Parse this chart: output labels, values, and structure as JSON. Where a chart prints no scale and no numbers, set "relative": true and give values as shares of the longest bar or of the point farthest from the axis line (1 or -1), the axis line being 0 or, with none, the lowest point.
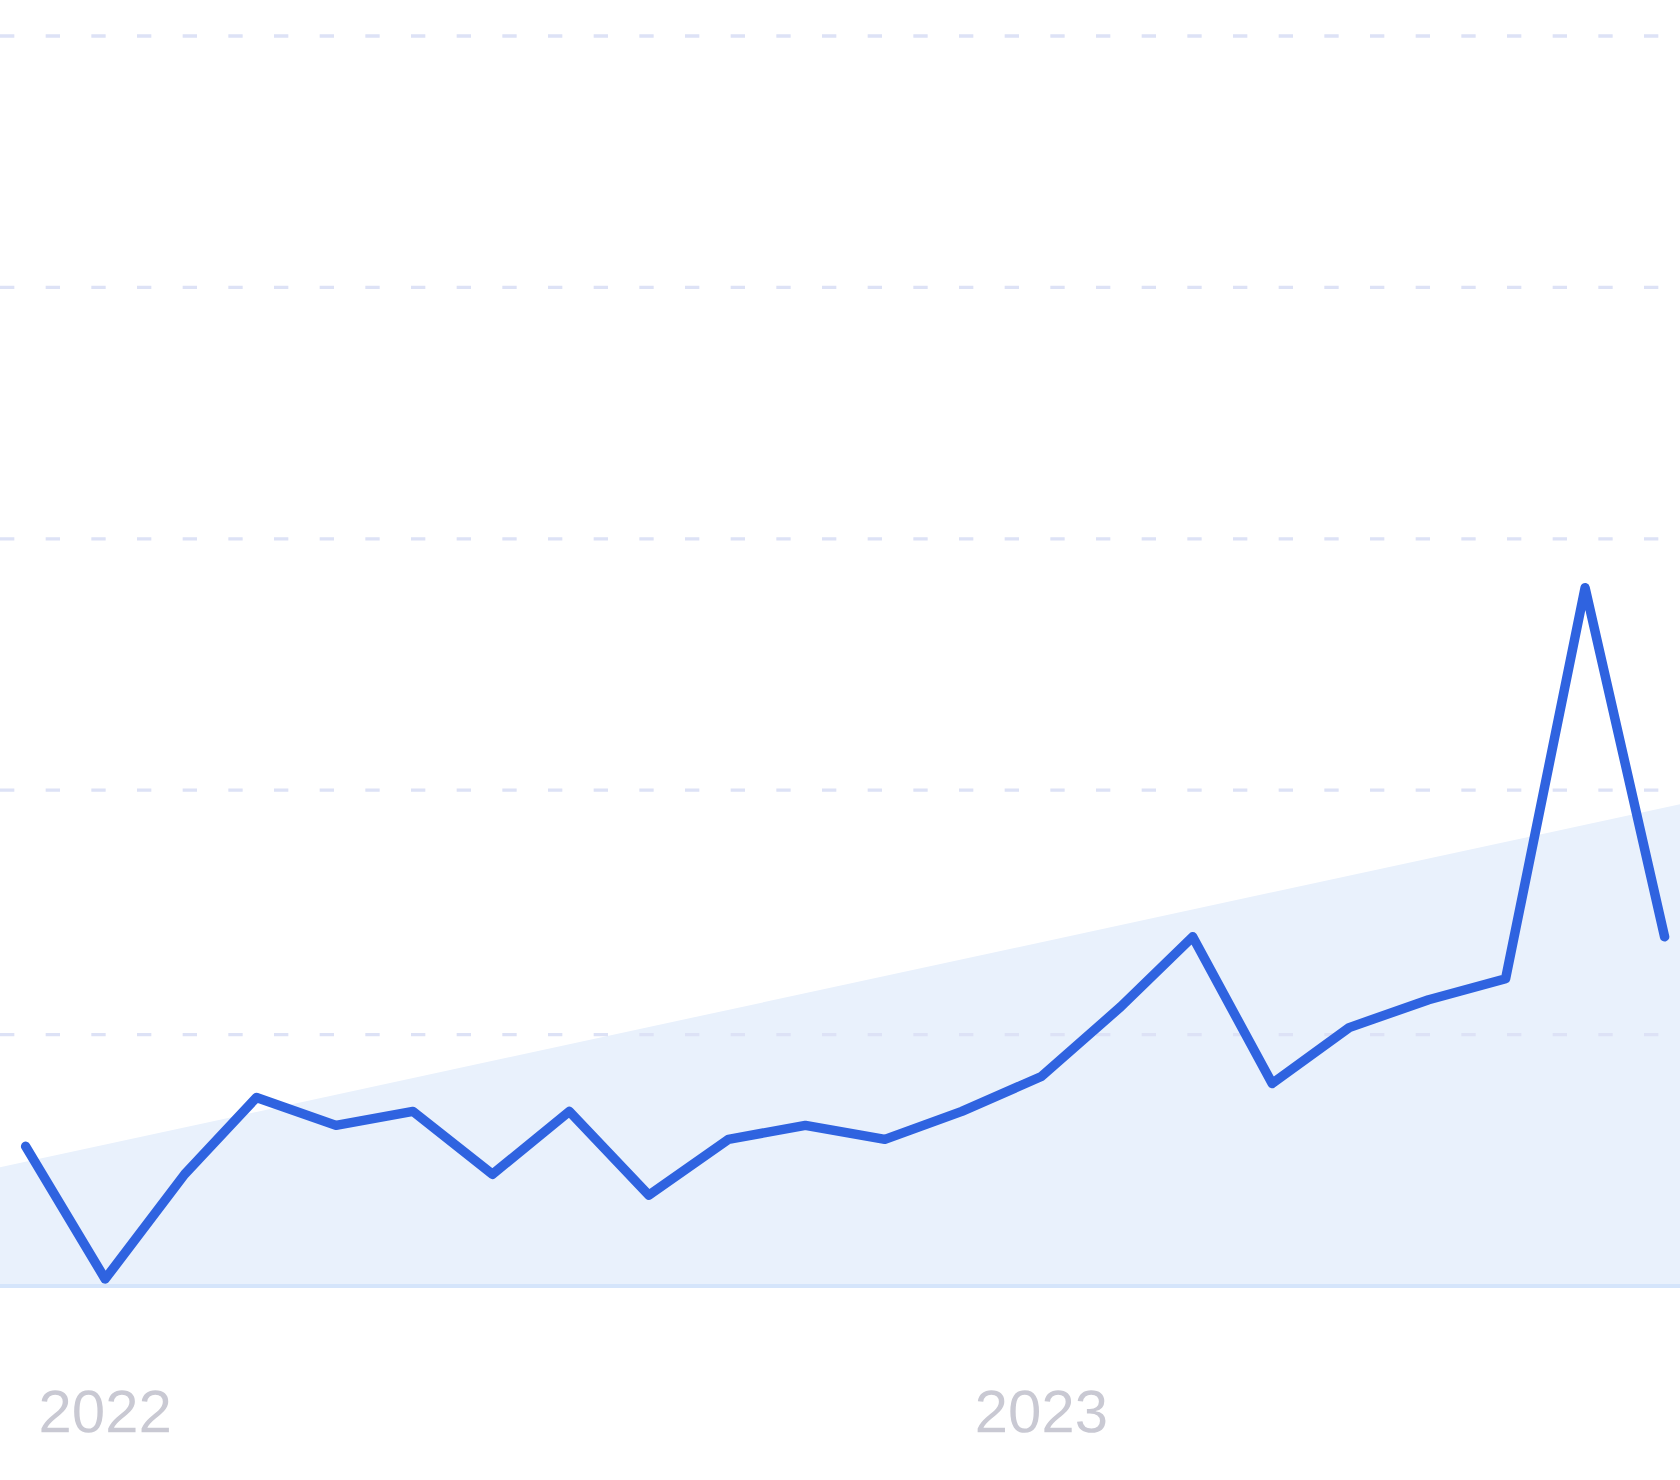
{
  "chart_data": {
    "type": "line",
    "relative": true,
    "x": [
      "2021-12",
      "2022-01",
      "2022-02",
      "2022-03",
      "2022-04",
      "2022-05",
      "2022-06",
      "2022-07",
      "2022-08",
      "2022-09",
      "2022-10",
      "2022-11",
      "2022-12",
      "2023-01",
      "2023-02",
      "2023-03",
      "2023-04",
      "2023-05",
      "2023-06",
      "2023-07",
      "2023-08",
      "2023-09"
    ],
    "series": [
      {
        "type": "area",
        "color": "#e9f1fc",
        "x": [
          "2021-11-21",
          "2023-09-07"
        ],
        "values": [
          0.17,
          0.69
        ]
      },
      {
        "color": "#2f63e0",
        "values": [
          0.2,
          0.01,
          0.16,
          0.27,
          0.23,
          0.25,
          0.16,
          0.25,
          0.13,
          0.21,
          0.23,
          0.21,
          0.25,
          0.3,
          0.4,
          0.5,
          0.29,
          0.37,
          0.41,
          0.44,
          1,
          0.5
        ]
      }
    ],
    "xlim": [
      "2021-11-21",
      "2023-09-07"
    ],
    "xticks": [
      {
        "value": "2022-01",
        "label": "2022"
      },
      {
        "value": "2023-01",
        "label": "2023"
      }
    ],
    "ref_lines": [
      {
        "axis": "y",
        "value": 0.36,
        "color": "#dde2f6",
        "line_style": "dashed"
      },
      {
        "axis": "y",
        "value": 0.71,
        "color": "#dde2f6",
        "line_style": "dashed"
      },
      {
        "axis": "y",
        "value": 1.07,
        "color": "#dde2f6",
        "line_style": "dashed"
      },
      {
        "axis": "y",
        "value": 1.43,
        "color": "#dde2f6",
        "line_style": "dashed"
      },
      {
        "axis": "y",
        "value": 1.79,
        "color": "#dde2f6",
        "line_style": "dashed"
      }
    ],
    "tick_labels": "x"
  }
}
